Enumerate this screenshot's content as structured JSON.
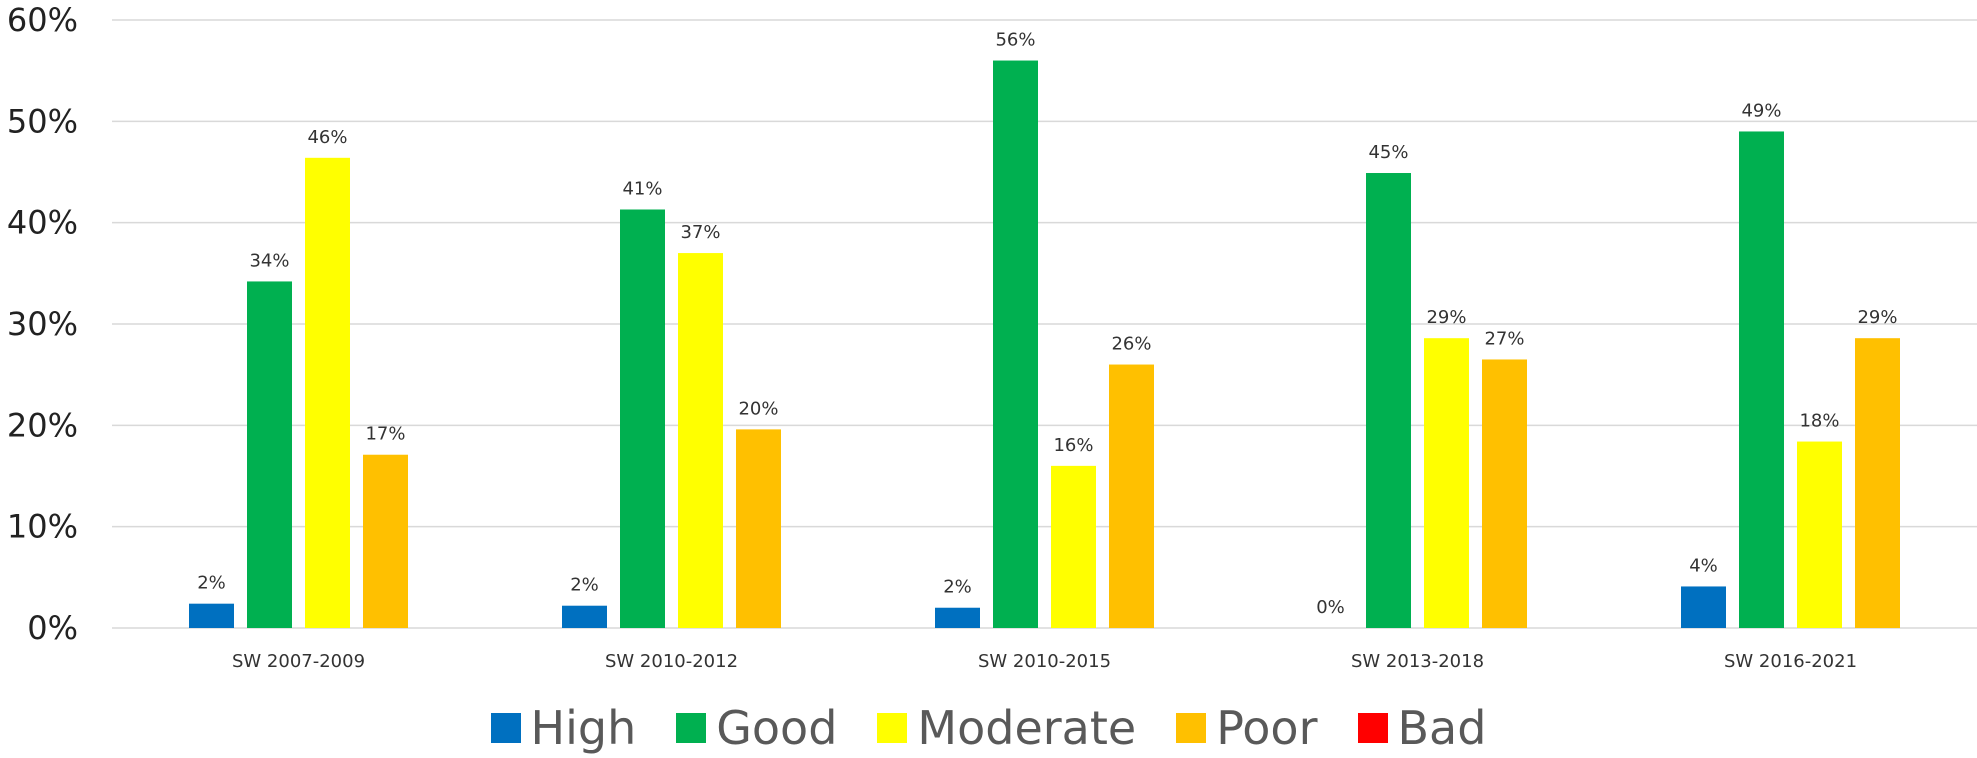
{
  "chart_data": {
    "type": "bar",
    "categories": [
      "SW 2007-2009",
      "SW 2010-2012",
      "SW 2010-2015",
      "SW 2013-2018",
      "SW 2016-2021"
    ],
    "series": [
      {
        "name": "High",
        "color": "#0070c0",
        "values": [
          2.4,
          2.2,
          2.0,
          0,
          4.1
        ],
        "labels": [
          "2%",
          "2%",
          "2%",
          "0%",
          "4%"
        ]
      },
      {
        "name": "Good",
        "color": "#00b050",
        "values": [
          34.2,
          41.3,
          56.0,
          44.9,
          49.0
        ],
        "labels": [
          "34%",
          "41%",
          "56%",
          "45%",
          "49%"
        ]
      },
      {
        "name": "Moderate",
        "color": "#ffff00",
        "values": [
          46.4,
          37.0,
          16.0,
          28.6,
          18.4
        ],
        "labels": [
          "46%",
          "37%",
          "16%",
          "29%",
          "18%"
        ]
      },
      {
        "name": "Poor",
        "color": "#ffc000",
        "values": [
          17.1,
          19.6,
          26.0,
          26.5,
          28.6
        ],
        "labels": [
          "17%",
          "20%",
          "26%",
          "27%",
          "29%"
        ]
      },
      {
        "name": "Bad",
        "color": "#ff0000",
        "values": [
          0,
          0,
          0,
          0,
          0
        ],
        "labels": []
      }
    ],
    "yticks": [
      "0%",
      "10%",
      "20%",
      "30%",
      "40%",
      "50%",
      "60%"
    ],
    "ylim": [
      0,
      60
    ],
    "title": "",
    "xlabel": "",
    "ylabel": "",
    "grid": true,
    "legend_position": "bottom"
  }
}
